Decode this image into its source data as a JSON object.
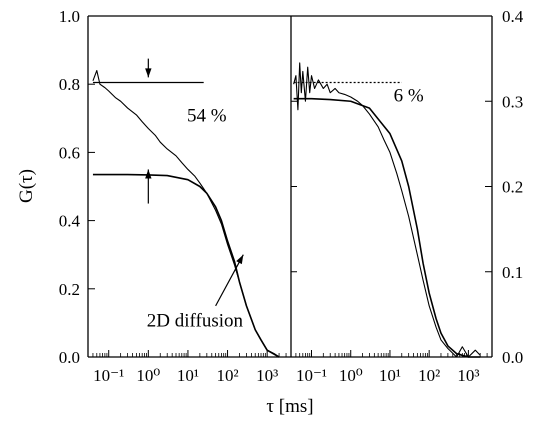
{
  "chart_data": [
    {
      "type": "line",
      "panel": "left",
      "xlabel": "τ [ms]",
      "ylabel": "G(τ)",
      "xscale": "log",
      "xlim": [
        0.03,
        4000
      ],
      "ylim": [
        0.0,
        1.0
      ],
      "x_ticks": [
        {
          "value": 0.1,
          "label": "10⁻¹"
        },
        {
          "value": 1,
          "label": "10⁰"
        },
        {
          "value": 10,
          "label": "10¹"
        },
        {
          "value": 100,
          "label": "10²"
        },
        {
          "value": 1000,
          "label": "10³"
        }
      ],
      "y_ticks": [
        {
          "value": 0.0,
          "label": "0.0"
        },
        {
          "value": 0.2,
          "label": "0.2"
        },
        {
          "value": 0.4,
          "label": "0.4"
        },
        {
          "value": 0.6,
          "label": "0.6"
        },
        {
          "value": 0.8,
          "label": "0.8"
        },
        {
          "value": 1.0,
          "label": "1.0"
        }
      ],
      "grid": false,
      "series": [
        {
          "role": "measured",
          "x": [
            0.04,
            0.05,
            0.06,
            0.08,
            0.1,
            0.15,
            0.2,
            0.3,
            0.5,
            0.7,
            1,
            1.5,
            2,
            3,
            5,
            7,
            10,
            15,
            20,
            30,
            50,
            70,
            100,
            150,
            200,
            300,
            500,
            700,
            1000,
            1500,
            2000
          ],
          "y": [
            0.81,
            0.84,
            0.8,
            0.79,
            0.78,
            0.76,
            0.75,
            0.73,
            0.71,
            0.69,
            0.67,
            0.65,
            0.63,
            0.61,
            0.59,
            0.57,
            0.55,
            0.53,
            0.51,
            0.48,
            0.43,
            0.39,
            0.33,
            0.27,
            0.22,
            0.15,
            0.08,
            0.05,
            0.02,
            0.01,
            0.0
          ]
        },
        {
          "role": "fit",
          "x": [
            0.04,
            0.1,
            0.3,
            1,
            3,
            10,
            20,
            30,
            50,
            70,
            100,
            150,
            200,
            300,
            500,
            700,
            1000,
            2000
          ],
          "y": [
            0.535,
            0.535,
            0.535,
            0.534,
            0.532,
            0.52,
            0.5,
            0.48,
            0.44,
            0.4,
            0.34,
            0.28,
            0.22,
            0.15,
            0.08,
            0.05,
            0.02,
            0.0
          ]
        }
      ],
      "reference_lines": [
        {
          "y": 0.805,
          "x_from": 0.04,
          "x_to": 25
        }
      ],
      "arrows": [
        {
          "x": 1,
          "y_from": 0.875,
          "y_to": 0.82
        },
        {
          "x": 1,
          "y_from": 0.45,
          "y_to": 0.55
        }
      ],
      "annotations": [
        {
          "text": "54 %",
          "x": 30,
          "y": 0.69
        },
        {
          "text": "2D diffusion",
          "x": 15,
          "y": 0.09
        },
        {
          "text_arrow": true,
          "x_from": 50,
          "y_from": 0.15,
          "x_to": 250,
          "y_to": 0.3
        }
      ]
    },
    {
      "type": "line",
      "panel": "right",
      "xscale": "log",
      "xlim": [
        0.03,
        4000
      ],
      "ylim": [
        0.0,
        0.4
      ],
      "x_ticks": [
        {
          "value": 0.1,
          "label": "10⁻¹"
        },
        {
          "value": 1,
          "label": "10⁰"
        },
        {
          "value": 10,
          "label": "10¹"
        },
        {
          "value": 100,
          "label": "10²"
        },
        {
          "value": 1000,
          "label": "10³"
        }
      ],
      "y_ticks": [
        {
          "value": 0.0,
          "label": "0.0"
        },
        {
          "value": 0.1,
          "label": "0.1"
        },
        {
          "value": 0.2,
          "label": "0.2"
        },
        {
          "value": 0.3,
          "label": "0.3"
        },
        {
          "value": 0.4,
          "label": "0.4"
        }
      ],
      "grid": false,
      "series": [
        {
          "role": "measured",
          "x": [
            0.035,
            0.04,
            0.045,
            0.05,
            0.055,
            0.06,
            0.07,
            0.08,
            0.09,
            0.1,
            0.12,
            0.15,
            0.2,
            0.25,
            0.3,
            0.4,
            0.5,
            0.7,
            1,
            1.5,
            2,
            3,
            5,
            7,
            10,
            15,
            20,
            30,
            50,
            70,
            100,
            150,
            200,
            300,
            500,
            700,
            1000,
            1500,
            2000
          ],
          "y": [
            0.32,
            0.33,
            0.29,
            0.345,
            0.31,
            0.335,
            0.3,
            0.34,
            0.31,
            0.33,
            0.315,
            0.325,
            0.315,
            0.32,
            0.31,
            0.315,
            0.31,
            0.308,
            0.305,
            0.3,
            0.295,
            0.285,
            0.27,
            0.255,
            0.24,
            0.215,
            0.195,
            0.165,
            0.12,
            0.09,
            0.06,
            0.035,
            0.02,
            0.01,
            0.0,
            0.012,
            0.0,
            0.008,
            0.002
          ]
        },
        {
          "role": "fit",
          "x": [
            0.035,
            0.1,
            0.3,
            1,
            3,
            10,
            20,
            30,
            50,
            70,
            100,
            150,
            200,
            300,
            500,
            700,
            1000,
            2000
          ],
          "y": [
            0.303,
            0.303,
            0.302,
            0.3,
            0.292,
            0.262,
            0.23,
            0.2,
            0.15,
            0.11,
            0.075,
            0.045,
            0.028,
            0.013,
            0.004,
            0.002,
            0.0,
            0.0
          ]
        }
      ],
      "reference_lines": [
        {
          "y": 0.322,
          "x_from": 0.035,
          "x_to": 20,
          "style": "dotted"
        }
      ],
      "annotations": [
        {
          "text": "6 %",
          "x": 30,
          "y": 0.3
        }
      ]
    }
  ]
}
